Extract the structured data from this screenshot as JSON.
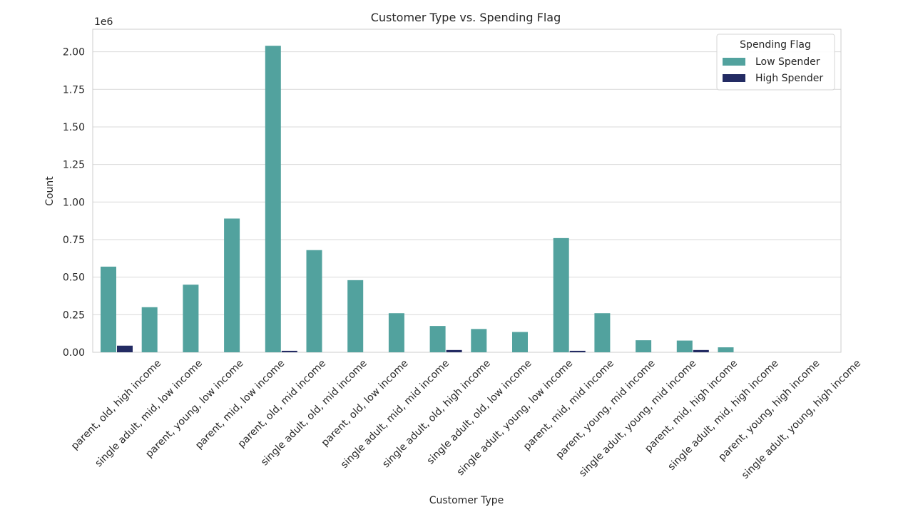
{
  "chart_data": {
    "type": "bar",
    "title": "Customer Type vs. Spending Flag",
    "xlabel": "Customer Type",
    "ylabel": "Count",
    "y_offset_label": "1e6",
    "ylim": [
      0,
      2.15
    ],
    "yticks": [
      "0.00",
      "0.25",
      "0.50",
      "0.75",
      "1.00",
      "1.25",
      "1.50",
      "1.75",
      "2.00"
    ],
    "grid": true,
    "legend_position": "top-right",
    "legend_title": "Spending Flag",
    "categories": [
      "parent, old, high income",
      "single adult, mid, low income",
      "parent, young, low income",
      "parent, mid, low income",
      "parent, old, mid income",
      "single adult, old, mid income",
      "parent, old, low income",
      "single adult, mid, mid income",
      "single adult, old, high income",
      "single adult, old, low income",
      "single adult, young, low income",
      "parent, mid, mid income",
      "parent, young, mid income",
      "single adult, young, mid income",
      "parent, mid, high income",
      "single adult, mid, high income",
      "parent, young, high income",
      "single adult, young, high income"
    ],
    "series": [
      {
        "name": "Low Spender",
        "color": "#52a29e",
        "values": [
          0.57,
          0.3,
          0.45,
          0.89,
          2.04,
          0.68,
          0.48,
          0.26,
          0.175,
          0.155,
          0.135,
          0.76,
          0.26,
          0.08,
          0.078,
          0.033,
          0,
          0
        ]
      },
      {
        "name": "High Spender",
        "color": "#232b63",
        "values": [
          0.044,
          0,
          0,
          0,
          0.01,
          0,
          0,
          0,
          0.015,
          0,
          0,
          0.01,
          0,
          0,
          0.015,
          0,
          0,
          0
        ]
      }
    ]
  }
}
